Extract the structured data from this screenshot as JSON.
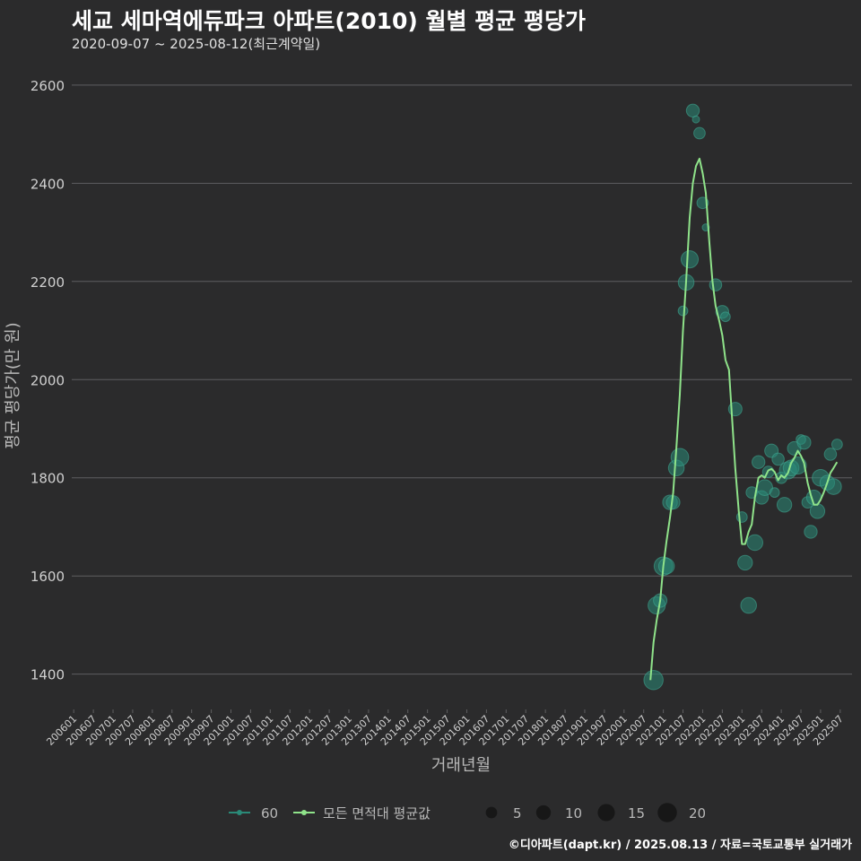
{
  "header": {
    "title": "세교 세마역에듀파크 아파트(2010) 월별 평균 평당가",
    "subtitle": "2020-09-07 ~ 2025-08-12(최근계약일)"
  },
  "footer": {
    "credit": "©디아파트(dapt.kr) / 2025.08.13 / 자료=국토교통부 실거래가"
  },
  "colors": {
    "background": "#2b2b2c",
    "grid": "#5e5e60",
    "point": "#2a8a78",
    "line": "#8fe38a",
    "text": "#d0d0d0"
  },
  "chart_data": {
    "type": "scatter",
    "title": "세교 세마역에듀파크 아파트(2010) 월별 평균 평당가",
    "xlabel": "거래년월",
    "ylabel": "평균 평당가(만 원)",
    "ylim": [
      1330,
      2660
    ],
    "yticks": [
      1400,
      1600,
      1800,
      2000,
      2200,
      2400,
      2600
    ],
    "xlim": [
      2005.95,
      2025.8
    ],
    "xtick_labels": [
      "200601",
      "200607",
      "200701",
      "200707",
      "200801",
      "200807",
      "200901",
      "200907",
      "201001",
      "201007",
      "201101",
      "201107",
      "201201",
      "201207",
      "201301",
      "201307",
      "201401",
      "201407",
      "201501",
      "201507",
      "201601",
      "201607",
      "201701",
      "201707",
      "201801",
      "201807",
      "201901",
      "201907",
      "202001",
      "202007",
      "202101",
      "202107",
      "202201",
      "202207",
      "202301",
      "202307",
      "202401",
      "202407",
      "202501",
      "202507"
    ],
    "legend": {
      "series_60": "60",
      "series_avg": "모든 면적대 평균값",
      "size_values": [
        5,
        10,
        15,
        20
      ]
    },
    "series": [
      {
        "name": "60",
        "points": [
          {
            "x": 2020.75,
            "y": 1388,
            "n": 20
          },
          {
            "x": 2020.83,
            "y": 1540,
            "n": 15
          },
          {
            "x": 2020.92,
            "y": 1550,
            "n": 8
          },
          {
            "x": 2021.0,
            "y": 1620,
            "n": 18
          },
          {
            "x": 2021.08,
            "y": 1620,
            "n": 12
          },
          {
            "x": 2021.17,
            "y": 1750,
            "n": 10
          },
          {
            "x": 2021.25,
            "y": 1750,
            "n": 8
          },
          {
            "x": 2021.33,
            "y": 1820,
            "n": 12
          },
          {
            "x": 2021.42,
            "y": 1842,
            "n": 16
          },
          {
            "x": 2021.5,
            "y": 2140,
            "n": 3
          },
          {
            "x": 2021.58,
            "y": 2198,
            "n": 12
          },
          {
            "x": 2021.67,
            "y": 2245,
            "n": 15
          },
          {
            "x": 2021.75,
            "y": 2548,
            "n": 7
          },
          {
            "x": 2021.83,
            "y": 2530,
            "n": 1
          },
          {
            "x": 2021.92,
            "y": 2502,
            "n": 5
          },
          {
            "x": 2022.0,
            "y": 2360,
            "n": 5
          },
          {
            "x": 2022.08,
            "y": 2310,
            "n": 1
          },
          {
            "x": 2022.33,
            "y": 2193,
            "n": 6
          },
          {
            "x": 2022.5,
            "y": 2138,
            "n": 7
          },
          {
            "x": 2022.58,
            "y": 2128,
            "n": 3
          },
          {
            "x": 2022.83,
            "y": 1940,
            "n": 8
          },
          {
            "x": 2023.0,
            "y": 1720,
            "n": 4
          },
          {
            "x": 2023.08,
            "y": 1627,
            "n": 10
          },
          {
            "x": 2023.17,
            "y": 1540,
            "n": 12
          },
          {
            "x": 2023.25,
            "y": 1770,
            "n": 5
          },
          {
            "x": 2023.33,
            "y": 1668,
            "n": 12
          },
          {
            "x": 2023.42,
            "y": 1832,
            "n": 7
          },
          {
            "x": 2023.5,
            "y": 1760,
            "n": 8
          },
          {
            "x": 2023.58,
            "y": 1780,
            "n": 12
          },
          {
            "x": 2023.67,
            "y": 1812,
            "n": 5
          },
          {
            "x": 2023.75,
            "y": 1855,
            "n": 8
          },
          {
            "x": 2023.83,
            "y": 1770,
            "n": 3
          },
          {
            "x": 2023.92,
            "y": 1838,
            "n": 6
          },
          {
            "x": 2024.0,
            "y": 1800,
            "n": 5
          },
          {
            "x": 2024.08,
            "y": 1745,
            "n": 10
          },
          {
            "x": 2024.17,
            "y": 1815,
            "n": 15
          },
          {
            "x": 2024.25,
            "y": 1820,
            "n": 12
          },
          {
            "x": 2024.33,
            "y": 1860,
            "n": 8
          },
          {
            "x": 2024.42,
            "y": 1825,
            "n": 15
          },
          {
            "x": 2024.5,
            "y": 1878,
            "n": 3
          },
          {
            "x": 2024.58,
            "y": 1872,
            "n": 8
          },
          {
            "x": 2024.67,
            "y": 1750,
            "n": 5
          },
          {
            "x": 2024.75,
            "y": 1690,
            "n": 7
          },
          {
            "x": 2024.83,
            "y": 1760,
            "n": 10
          },
          {
            "x": 2024.92,
            "y": 1732,
            "n": 10
          },
          {
            "x": 2025.0,
            "y": 1800,
            "n": 14
          },
          {
            "x": 2025.17,
            "y": 1790,
            "n": 10
          },
          {
            "x": 2025.25,
            "y": 1848,
            "n": 6
          },
          {
            "x": 2025.33,
            "y": 1782,
            "n": 12
          },
          {
            "x": 2025.42,
            "y": 1868,
            "n": 4
          }
        ]
      },
      {
        "name": "모든 면적대 평균값",
        "points": [
          {
            "x": 2020.67,
            "y": 1388
          },
          {
            "x": 2020.75,
            "y": 1465
          },
          {
            "x": 2020.83,
            "y": 1510
          },
          {
            "x": 2020.92,
            "y": 1550
          },
          {
            "x": 2021.0,
            "y": 1620
          },
          {
            "x": 2021.08,
            "y": 1670
          },
          {
            "x": 2021.17,
            "y": 1720
          },
          {
            "x": 2021.25,
            "y": 1770
          },
          {
            "x": 2021.33,
            "y": 1860
          },
          {
            "x": 2021.42,
            "y": 1970
          },
          {
            "x": 2021.5,
            "y": 2100
          },
          {
            "x": 2021.58,
            "y": 2200
          },
          {
            "x": 2021.67,
            "y": 2330
          },
          {
            "x": 2021.75,
            "y": 2400
          },
          {
            "x": 2021.83,
            "y": 2435
          },
          {
            "x": 2021.92,
            "y": 2450
          },
          {
            "x": 2022.0,
            "y": 2420
          },
          {
            "x": 2022.08,
            "y": 2380
          },
          {
            "x": 2022.17,
            "y": 2280
          },
          {
            "x": 2022.25,
            "y": 2200
          },
          {
            "x": 2022.33,
            "y": 2150
          },
          {
            "x": 2022.42,
            "y": 2120
          },
          {
            "x": 2022.5,
            "y": 2090
          },
          {
            "x": 2022.58,
            "y": 2040
          },
          {
            "x": 2022.67,
            "y": 2020
          },
          {
            "x": 2022.75,
            "y": 1920
          },
          {
            "x": 2022.83,
            "y": 1820
          },
          {
            "x": 2022.92,
            "y": 1730
          },
          {
            "x": 2023.0,
            "y": 1665
          },
          {
            "x": 2023.08,
            "y": 1665
          },
          {
            "x": 2023.17,
            "y": 1690
          },
          {
            "x": 2023.25,
            "y": 1705
          },
          {
            "x": 2023.33,
            "y": 1760
          },
          {
            "x": 2023.42,
            "y": 1800
          },
          {
            "x": 2023.5,
            "y": 1805
          },
          {
            "x": 2023.58,
            "y": 1800
          },
          {
            "x": 2023.67,
            "y": 1815
          },
          {
            "x": 2023.75,
            "y": 1818
          },
          {
            "x": 2023.83,
            "y": 1812
          },
          {
            "x": 2023.92,
            "y": 1795
          },
          {
            "x": 2024.0,
            "y": 1805
          },
          {
            "x": 2024.08,
            "y": 1800
          },
          {
            "x": 2024.17,
            "y": 1810
          },
          {
            "x": 2024.25,
            "y": 1830
          },
          {
            "x": 2024.33,
            "y": 1840
          },
          {
            "x": 2024.42,
            "y": 1855
          },
          {
            "x": 2024.5,
            "y": 1845
          },
          {
            "x": 2024.58,
            "y": 1830
          },
          {
            "x": 2024.67,
            "y": 1790
          },
          {
            "x": 2024.75,
            "y": 1765
          },
          {
            "x": 2024.83,
            "y": 1745
          },
          {
            "x": 2024.92,
            "y": 1745
          },
          {
            "x": 2025.0,
            "y": 1755
          },
          {
            "x": 2025.08,
            "y": 1770
          },
          {
            "x": 2025.17,
            "y": 1790
          },
          {
            "x": 2025.25,
            "y": 1810
          },
          {
            "x": 2025.33,
            "y": 1820
          },
          {
            "x": 2025.42,
            "y": 1832
          }
        ]
      }
    ]
  }
}
